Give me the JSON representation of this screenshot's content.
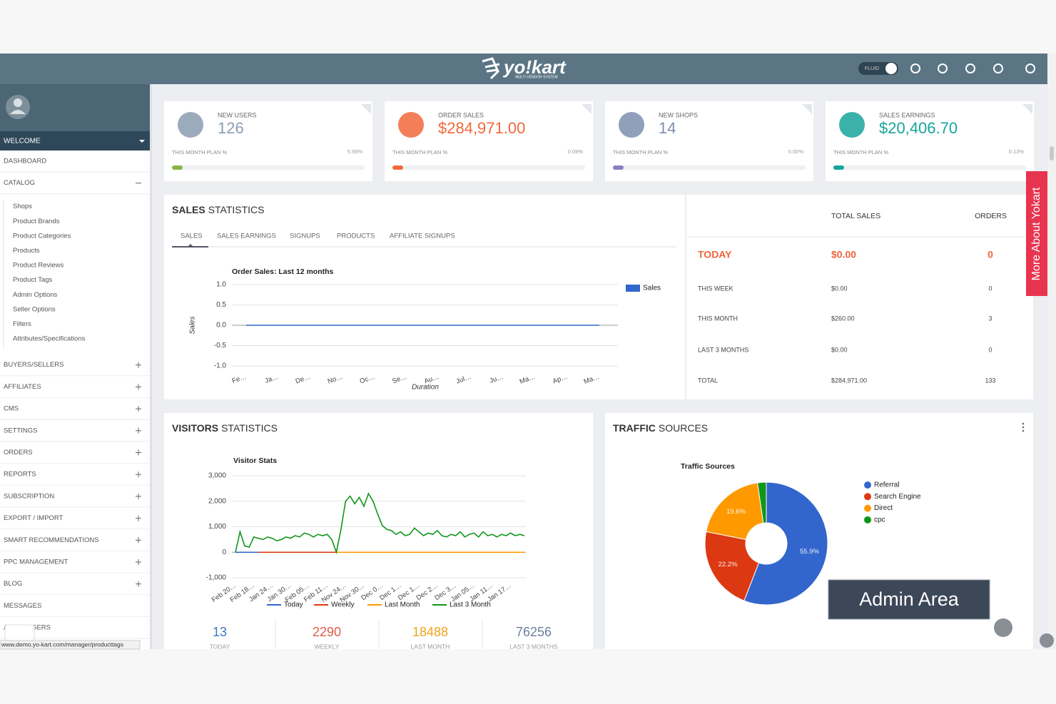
{
  "header": {
    "logo": "yo!kart",
    "logo_sub": "MULTI VENDOR SYSTEM",
    "toggle": "FLUID"
  },
  "sidebar": {
    "welcome": "WELCOME",
    "menu": [
      {
        "label": "DASHBOARD"
      },
      {
        "label": "CATALOG",
        "icon": "minus",
        "children": [
          "Shops",
          "Product Brands",
          "Product Categories",
          "Products",
          "Product Reviews",
          "Product Tags",
          "Admin Options",
          "Seller Options",
          "Filters",
          "Attributes/Specifications"
        ]
      },
      {
        "label": "BUYERS/SELLERS",
        "icon": "plus"
      },
      {
        "label": "AFFILIATES",
        "icon": "plus"
      },
      {
        "label": "CMS",
        "icon": "plus"
      },
      {
        "label": "SETTINGS",
        "icon": "plus"
      },
      {
        "label": "ORDERS",
        "icon": "plus"
      },
      {
        "label": "REPORTS",
        "icon": "plus"
      },
      {
        "label": "SUBSCRIPTION",
        "icon": "plus"
      },
      {
        "label": "EXPORT / IMPORT",
        "icon": "plus"
      },
      {
        "label": "SMART RECOMMENDATIONS",
        "icon": "plus"
      },
      {
        "label": "PPC MANAGEMENT",
        "icon": "plus"
      },
      {
        "label": "BLOG",
        "icon": "plus"
      },
      {
        "label": "MESSAGES"
      },
      {
        "label": "ADMIN USERS"
      }
    ],
    "status_url": "www.demo.yo-kart.com/manager/producttags"
  },
  "cards": [
    {
      "title": "NEW USERS",
      "value": "126",
      "plan": "THIS MONTH PLAN %",
      "percent": "5.56%",
      "color": "#8a9cb0",
      "bar": "#8bb34a"
    },
    {
      "title": "ORDER SALES",
      "value": "$284,971.00",
      "plan": "THIS MONTH PLAN %",
      "percent": "0.09%",
      "color": "#f0693b",
      "bar": "#f0693b"
    },
    {
      "title": "NEW SHOPS",
      "value": "14",
      "plan": "THIS MONTH PLAN %",
      "percent": "0.00%",
      "color": "#7d8fae",
      "bar": "#8e7cc3"
    },
    {
      "title": "SALES EARNINGS",
      "value": "$20,406.70",
      "plan": "THIS MONTH PLAN %",
      "percent": "0.13%",
      "color": "#17a59b",
      "bar": "#17a59b"
    }
  ],
  "sales_statistics": {
    "title_bold": "SALES",
    "title_rest": "STATISTICS",
    "tabs": [
      "SALES",
      "SALES EARNINGS",
      "SIGNUPS",
      "PRODUCTS",
      "AFFILIATE SIGNUPS"
    ],
    "chart": {
      "type": "line",
      "title": "Order Sales: Last 12 months",
      "y_label": "Sales",
      "x_label": "Duration",
      "categories": [
        "Fe…",
        "Ja…",
        "De…",
        "No…",
        "Oc…",
        "Se…",
        "Au…",
        "Jul…",
        "Ju…",
        "Ma…",
        "Ap…",
        "Ma…"
      ],
      "series": [
        {
          "name": "Sales",
          "color": "#3366cc",
          "values": [
            0,
            0,
            0,
            0,
            0,
            0,
            0,
            0,
            0,
            0,
            0,
            0
          ]
        }
      ],
      "ylim": [
        -1,
        1
      ],
      "yticks": [
        {
          "value": 1,
          "label": "1.0"
        },
        0.5,
        {
          "value": 0,
          "label": "0.0"
        },
        -0.5,
        {
          "value": -1,
          "label": "-1.0"
        }
      ],
      "grid": true
    }
  },
  "summary": {
    "headers": [
      "TOTAL SALES",
      "ORDERS"
    ],
    "rows": [
      [
        "TODAY",
        "$0.00",
        "0"
      ],
      [
        "THIS WEEK",
        "$0.00",
        "0"
      ],
      [
        "THIS MONTH",
        "$260.00",
        "3"
      ],
      [
        "LAST 3 MONTHS",
        "$0.00",
        "0"
      ],
      [
        "TOTAL",
        "$284,971.00",
        "133"
      ]
    ]
  },
  "visitors": {
    "title_bold": "VISITORS",
    "title_rest": "STATISTICS",
    "chart": {
      "type": "line",
      "title": "Visitor Stats",
      "categories": [
        "Feb 20…",
        null,
        null,
        null,
        "Feb 18…",
        null,
        null,
        null,
        "Jan 24…",
        null,
        null,
        null,
        "Jan 30…",
        null,
        null,
        null,
        "Feb 05…",
        null,
        null,
        null,
        "Feb 11…",
        null,
        null,
        null,
        "Nov 24…",
        null,
        null,
        null,
        "Nov 30…",
        null,
        null,
        null,
        "Dec 0…",
        null,
        null,
        null,
        "Dec 1…",
        null,
        null,
        null,
        "Dec 1…",
        null,
        null,
        null,
        "Dec 2…",
        null,
        null,
        null,
        "Dec 3…",
        null,
        null,
        null,
        "Jan 05…",
        null,
        null,
        null,
        "Jan 11…",
        null,
        null,
        null,
        "Jan 17…",
        null,
        null,
        null
      ],
      "series": [
        {
          "name": "Today",
          "color": "#3366cc",
          "values": [
            0,
            0,
            0,
            0,
            0,
            0,
            null,
            null,
            null,
            null,
            null,
            null,
            null,
            null,
            null,
            null,
            null,
            null,
            null,
            null,
            null,
            null,
            null,
            null,
            null,
            null,
            null,
            null,
            null,
            null,
            null,
            null,
            null,
            null,
            null,
            null,
            null,
            null,
            null,
            null,
            null,
            null,
            null,
            null,
            null,
            null,
            null,
            null,
            null,
            null,
            null,
            null,
            null,
            null,
            null,
            null,
            null,
            null,
            null,
            null,
            null,
            null,
            null,
            null
          ]
        },
        {
          "name": "Weekly",
          "color": "#dc3912",
          "values": [
            null,
            null,
            null,
            null,
            null,
            0,
            0,
            0,
            0,
            0,
            0,
            0,
            0,
            0,
            0,
            0,
            0,
            0,
            0,
            0,
            0,
            0,
            0,
            null,
            null,
            null,
            null,
            null,
            null,
            null,
            null,
            null,
            null,
            null,
            null,
            null,
            null,
            null,
            null,
            null,
            null,
            null,
            null,
            null,
            null,
            null,
            null,
            null,
            null,
            null,
            null,
            null,
            null,
            null,
            null,
            null,
            null,
            null,
            null,
            null,
            null,
            null,
            null,
            null
          ]
        },
        {
          "name": "Last Month",
          "color": "#ff9900",
          "values": [
            null,
            null,
            null,
            null,
            null,
            null,
            null,
            null,
            null,
            null,
            null,
            null,
            null,
            null,
            null,
            null,
            null,
            null,
            null,
            null,
            null,
            null,
            0,
            0,
            0,
            0,
            0,
            0,
            0,
            0,
            0,
            0,
            0,
            0,
            0,
            0,
            0,
            0,
            0,
            0,
            0,
            0,
            0,
            0,
            0,
            0,
            0,
            0,
            0,
            0,
            0,
            0,
            0,
            0,
            0,
            0,
            0,
            0,
            0,
            0,
            0,
            0,
            0,
            0
          ]
        },
        {
          "name": "Last 3 Month",
          "color": "#109618",
          "values": [
            0,
            800,
            250,
            200,
            600,
            550,
            500,
            600,
            550,
            450,
            500,
            600,
            550,
            650,
            600,
            750,
            700,
            600,
            700,
            650,
            700,
            500,
            0,
            900,
            2000,
            2200,
            1900,
            2150,
            1800,
            2300,
            2000,
            1500,
            1050,
            900,
            850,
            700,
            800,
            650,
            700,
            950,
            800,
            650,
            750,
            700,
            850,
            650,
            600,
            700,
            650,
            800,
            600,
            700,
            750,
            600,
            800,
            650,
            700,
            600,
            700,
            650,
            750,
            650,
            700,
            650
          ]
        }
      ],
      "ylim": [
        -1000,
        3000
      ],
      "yticks": [
        {
          "value": 3000,
          "label": "3,000"
        },
        {
          "value": 2000,
          "label": "2,000"
        },
        {
          "value": 1000,
          "label": "1,000"
        },
        0,
        {
          "value": -1000,
          "label": "-1,000"
        }
      ],
      "grid": true
    },
    "stats": [
      {
        "value": "13",
        "label": "TODAY",
        "color": "#3b78c4"
      },
      {
        "value": "2290",
        "label": "WEEKLY",
        "color": "#e05c4a"
      },
      {
        "value": "18488",
        "label": "LAST MONTH",
        "color": "#f2a31b"
      },
      {
        "value": "76256",
        "label": "LAST 3 MONTHS",
        "color": "#6b7f99"
      }
    ]
  },
  "traffic": {
    "title_bold": "TRAFFIC",
    "title_rest": "SOURCES",
    "chart": {
      "type": "pie",
      "title": "Traffic Sources",
      "donut": true,
      "categories": [
        "Referral",
        "Search Engine",
        "Direct",
        "cpc"
      ],
      "values": [
        55.9,
        22.2,
        19.6,
        2.3
      ],
      "value_labels": [
        "55.9%",
        "22.2%",
        "19.6%",
        null
      ],
      "colors": [
        "#3366cc",
        "#dc3912",
        "#ff9900",
        "#109618"
      ]
    }
  },
  "overlays": {
    "side_tab": "More About Yokart",
    "badge": "Admin Area"
  }
}
